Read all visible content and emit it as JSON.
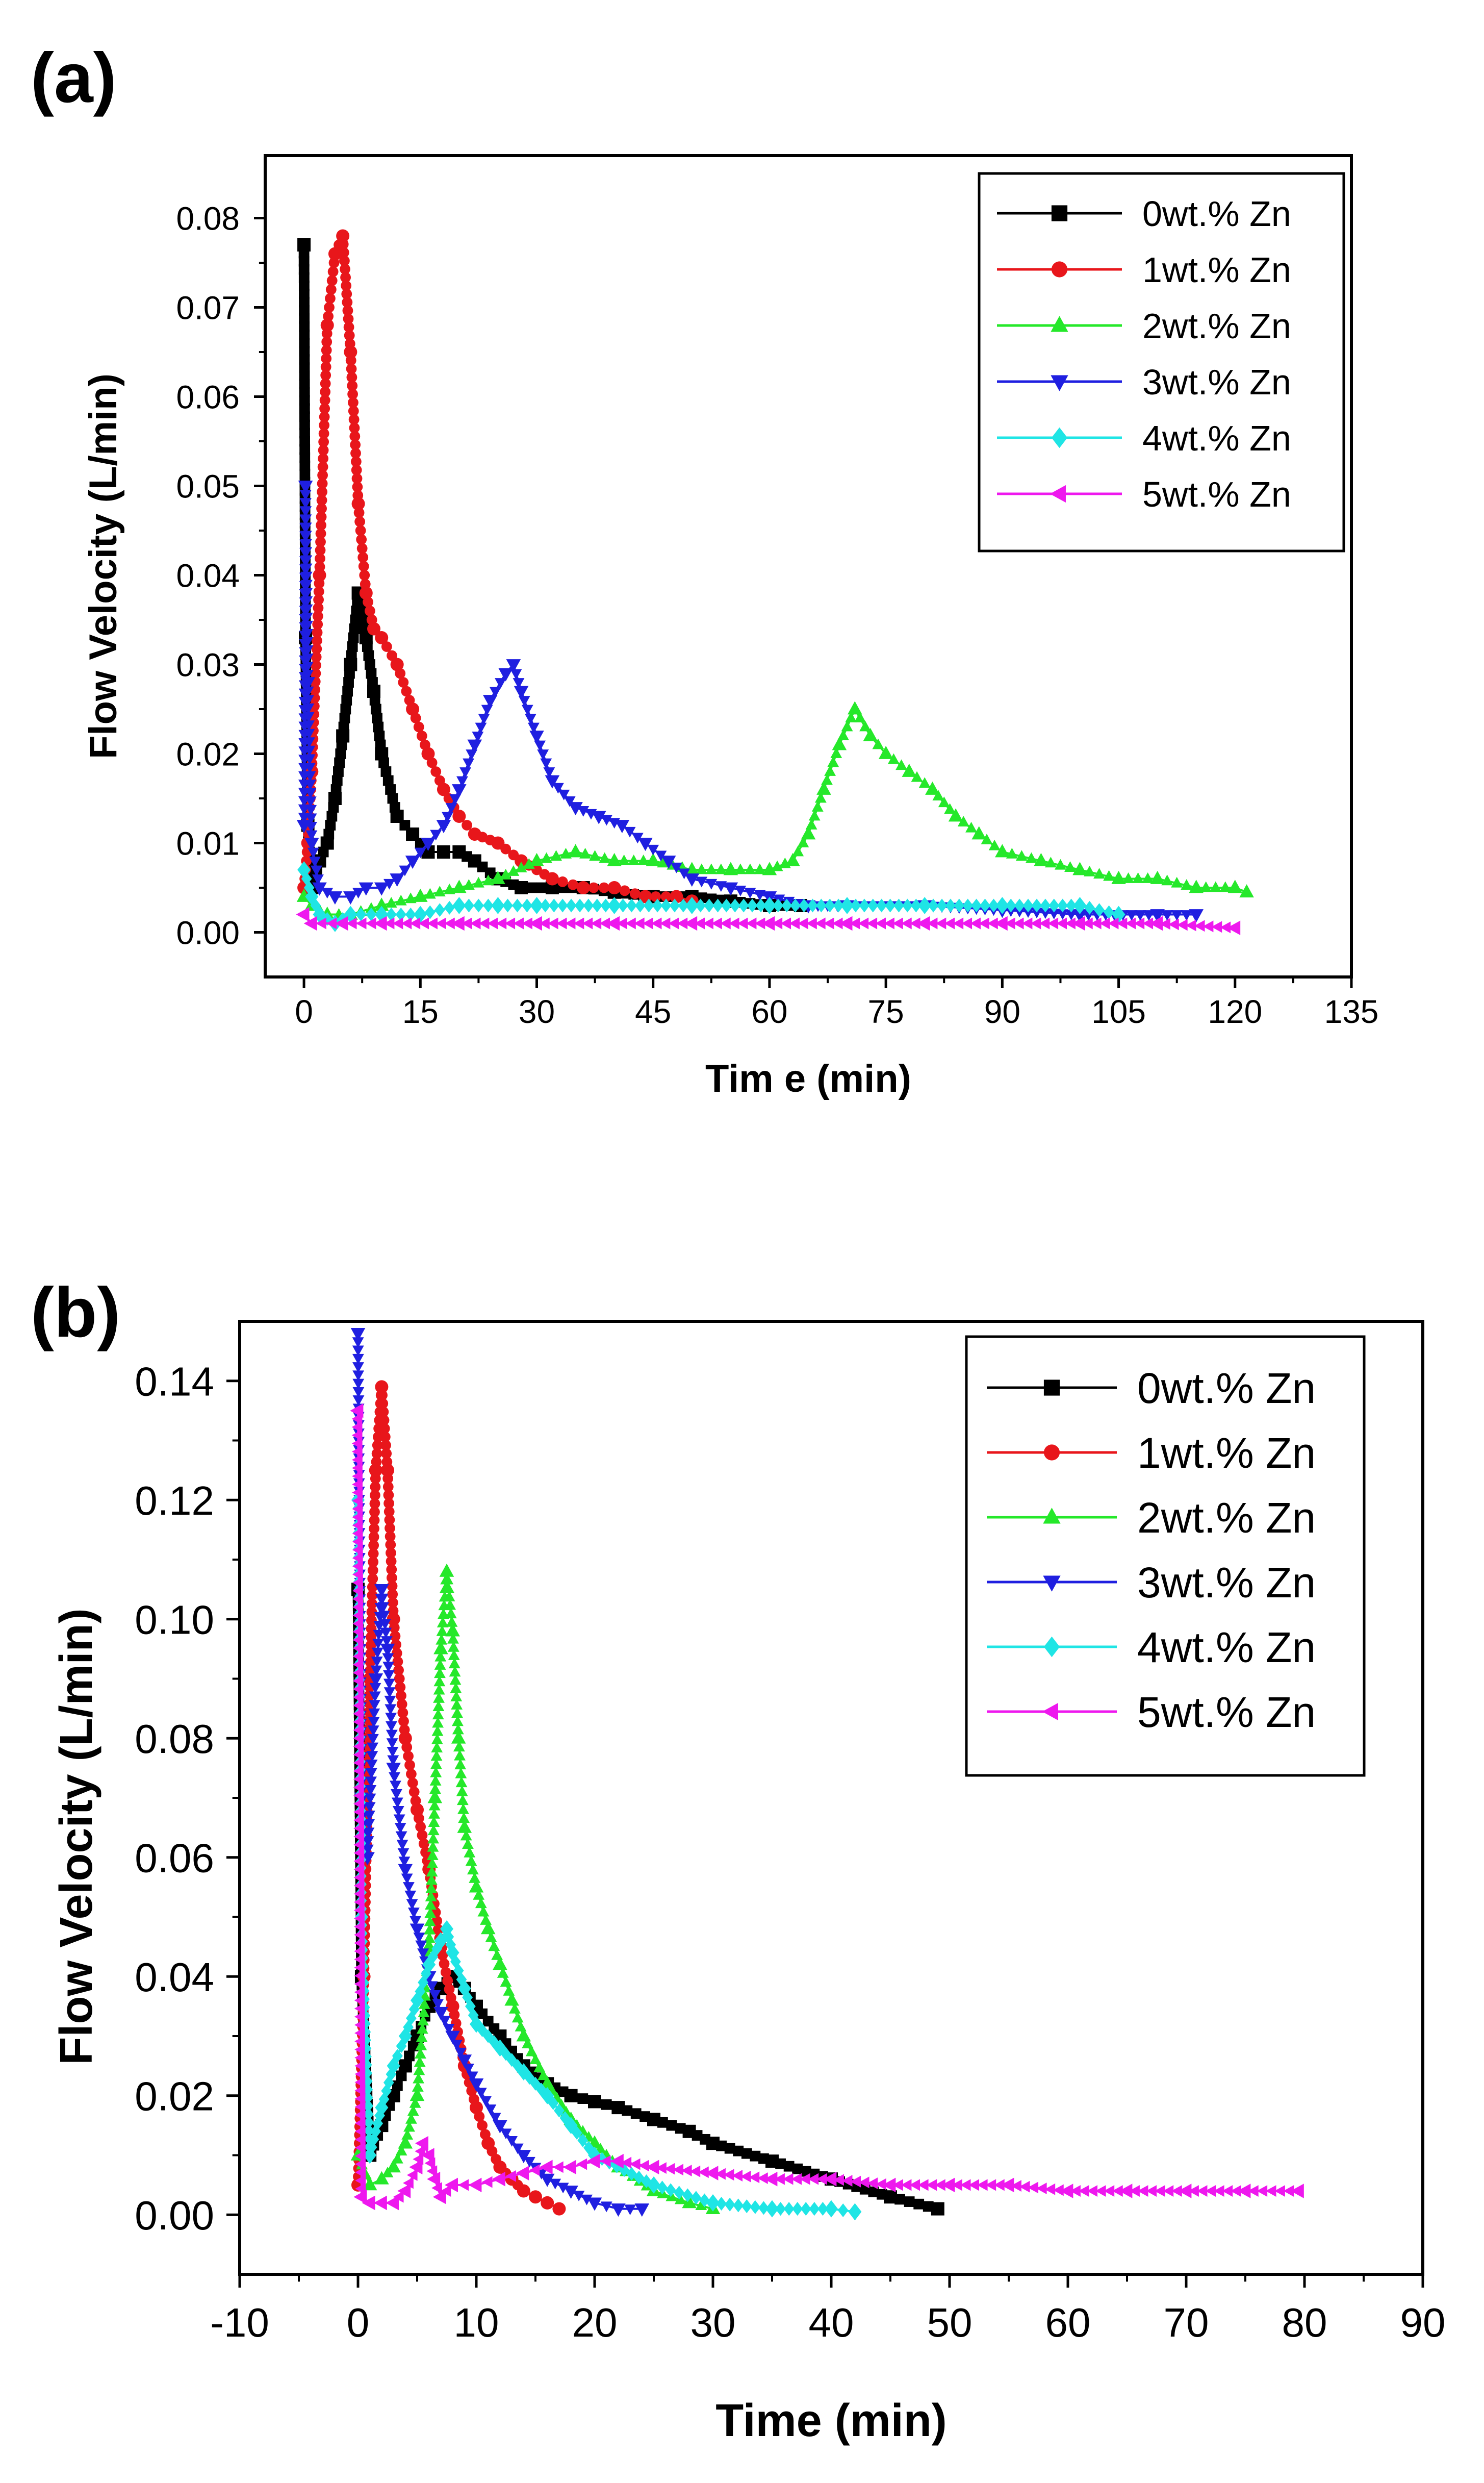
{
  "chart_data": [
    {
      "panel": "(a)",
      "type": "line",
      "xlabel": "Tim e (min)",
      "ylabel": "Flow Velocity (L/min)",
      "xlim": [
        -5,
        135
      ],
      "ylim": [
        -0.005,
        0.087
      ],
      "xticks": [
        0,
        15,
        30,
        45,
        60,
        75,
        90,
        105,
        120,
        135
      ],
      "xtick_labels": [
        "0",
        "15",
        "30",
        "45",
        "60",
        "75",
        "90",
        "105",
        "120",
        "135"
      ],
      "yticks": [
        0.0,
        0.01,
        0.02,
        0.03,
        0.04,
        0.05,
        0.06,
        0.07,
        0.08
      ],
      "ytick_labels": [
        "0.00",
        "0.01",
        "0.02",
        "0.03",
        "0.04",
        "0.05",
        "0.06",
        "0.07",
        "0.08"
      ],
      "legend_position": "top-right",
      "series": [
        {
          "name": "0wt.% Zn",
          "color": "#000000",
          "marker": "square",
          "x": [
            0,
            0.2,
            0.5,
            1,
            2,
            3,
            4,
            5,
            6,
            7,
            8,
            9,
            10,
            12,
            14,
            16,
            18,
            20,
            22,
            25,
            28,
            32,
            36,
            40,
            45,
            50,
            55,
            60,
            64
          ],
          "y": [
            0.077,
            0.033,
            0.012,
            0.005,
            0.008,
            0.01,
            0.015,
            0.022,
            0.03,
            0.038,
            0.033,
            0.027,
            0.02,
            0.013,
            0.011,
            0.009,
            0.009,
            0.009,
            0.008,
            0.006,
            0.005,
            0.005,
            0.005,
            0.0045,
            0.004,
            0.004,
            0.0035,
            0.003,
            0.003
          ]
        },
        {
          "name": "1wt.% Zn",
          "color": "#e8161b",
          "marker": "circle",
          "x": [
            0,
            0.5,
            1,
            2,
            3,
            4,
            5,
            6,
            7,
            8,
            9,
            10,
            12,
            14,
            16,
            18,
            20,
            22,
            25,
            28,
            32,
            36,
            40,
            44,
            48,
            50
          ],
          "y": [
            0.005,
            0.01,
            0.018,
            0.04,
            0.068,
            0.076,
            0.078,
            0.065,
            0.048,
            0.038,
            0.034,
            0.033,
            0.03,
            0.025,
            0.02,
            0.016,
            0.013,
            0.011,
            0.01,
            0.008,
            0.006,
            0.005,
            0.005,
            0.004,
            0.004,
            0.0035
          ]
        },
        {
          "name": "2wt.% Zn",
          "color": "#25e82a",
          "marker": "triangle-up",
          "x": [
            0,
            1,
            3,
            6,
            10,
            15,
            20,
            25,
            30,
            35,
            40,
            45,
            50,
            55,
            60,
            63,
            65,
            67,
            69,
            71,
            73,
            75,
            78,
            81,
            84,
            87,
            90,
            95,
            100,
            105,
            110,
            115,
            120,
            121.5
          ],
          "y": [
            0.004,
            0.003,
            0.002,
            0.002,
            0.003,
            0.004,
            0.005,
            0.006,
            0.008,
            0.009,
            0.008,
            0.008,
            0.007,
            0.007,
            0.007,
            0.008,
            0.011,
            0.016,
            0.021,
            0.025,
            0.022,
            0.02,
            0.018,
            0.016,
            0.013,
            0.011,
            0.009,
            0.008,
            0.007,
            0.006,
            0.006,
            0.005,
            0.005,
            0.0045
          ]
        },
        {
          "name": "3wt.% Zn",
          "color": "#1f1fe0",
          "marker": "triangle-down",
          "x": [
            0,
            0.2,
            0.5,
            1,
            2,
            4,
            6,
            8,
            10,
            12,
            14,
            16,
            18,
            20,
            22,
            24,
            26,
            27,
            28,
            30,
            32,
            35,
            38,
            41,
            44,
            47,
            50,
            55,
            60,
            65,
            70,
            80,
            90,
            100,
            110,
            115
          ],
          "y": [
            0.012,
            0.05,
            0.028,
            0.01,
            0.005,
            0.004,
            0.004,
            0.005,
            0.005,
            0.006,
            0.008,
            0.01,
            0.012,
            0.016,
            0.021,
            0.026,
            0.029,
            0.03,
            0.027,
            0.022,
            0.017,
            0.014,
            0.013,
            0.012,
            0.01,
            0.008,
            0.006,
            0.005,
            0.004,
            0.003,
            0.003,
            0.003,
            0.0025,
            0.002,
            0.002,
            0.002
          ]
        },
        {
          "name": "4wt.% Zn",
          "color": "#1fe5e5",
          "marker": "diamond",
          "x": [
            0,
            1,
            2,
            4,
            6,
            10,
            15,
            20,
            25,
            30,
            40,
            50,
            60,
            70,
            80,
            90,
            100,
            105
          ],
          "y": [
            0.007,
            0.004,
            0.002,
            0.001,
            0.002,
            0.002,
            0.002,
            0.003,
            0.003,
            0.003,
            0.003,
            0.003,
            0.003,
            0.003,
            0.003,
            0.003,
            0.003,
            0.002
          ]
        },
        {
          "name": "5wt.% Zn",
          "color": "#ee18ee",
          "marker": "triangle-left",
          "x": [
            0,
            1,
            5,
            10,
            20,
            30,
            40,
            50,
            60,
            70,
            80,
            90,
            100,
            110,
            120
          ],
          "y": [
            0.002,
            0.001,
            0.001,
            0.001,
            0.001,
            0.001,
            0.001,
            0.001,
            0.001,
            0.001,
            0.001,
            0.001,
            0.001,
            0.001,
            0.0005
          ]
        }
      ]
    },
    {
      "panel": "(b)",
      "type": "line",
      "xlabel": "Time (min)",
      "ylabel": "Flow Velocity (L/min)",
      "xlim": [
        -10,
        90
      ],
      "ylim": [
        -0.01,
        0.15
      ],
      "xticks": [
        -10,
        0,
        10,
        20,
        30,
        40,
        50,
        60,
        70,
        80,
        90
      ],
      "xtick_labels": [
        "-10",
        "0",
        "10",
        "20",
        "30",
        "40",
        "50",
        "60",
        "70",
        "80",
        "90"
      ],
      "yticks": [
        0.0,
        0.02,
        0.04,
        0.06,
        0.08,
        0.1,
        0.12,
        0.14
      ],
      "ytick_labels": [
        "0.00",
        "0.02",
        "0.04",
        "0.06",
        "0.08",
        "0.10",
        "0.12",
        "0.14"
      ],
      "legend_position": "top-right",
      "series": [
        {
          "name": "0wt.% Zn",
          "color": "#000000",
          "marker": "square",
          "x": [
            0,
            0.3,
            1,
            2,
            3,
            4,
            5,
            6,
            7,
            8,
            9,
            10,
            12,
            14,
            16,
            18,
            20,
            22,
            25,
            28,
            30,
            35,
            40,
            45,
            49
          ],
          "y": [
            0.105,
            0.04,
            0.01,
            0.015,
            0.02,
            0.025,
            0.03,
            0.035,
            0.038,
            0.04,
            0.038,
            0.035,
            0.03,
            0.025,
            0.022,
            0.02,
            0.019,
            0.018,
            0.016,
            0.014,
            0.012,
            0.009,
            0.006,
            0.003,
            0.001
          ]
        },
        {
          "name": "1wt.% Zn",
          "color": "#e8161b",
          "marker": "circle",
          "x": [
            0,
            0.5,
            1,
            1.5,
            2,
            2.5,
            3,
            4,
            5,
            6,
            7,
            8,
            9,
            10,
            11,
            12,
            13,
            14,
            15,
            16,
            17
          ],
          "y": [
            0.005,
            0.04,
            0.09,
            0.125,
            0.139,
            0.125,
            0.1,
            0.08,
            0.068,
            0.058,
            0.045,
            0.035,
            0.025,
            0.018,
            0.012,
            0.008,
            0.006,
            0.004,
            0.003,
            0.002,
            0.001
          ]
        },
        {
          "name": "2wt.% Zn",
          "color": "#25e82a",
          "marker": "triangle-up",
          "x": [
            0,
            1,
            2,
            3,
            4,
            5,
            6,
            6.5,
            7,
            7.5,
            8,
            8.5,
            9,
            10,
            11,
            12,
            13,
            14,
            16,
            18,
            20,
            22,
            25,
            28,
            30
          ],
          "y": [
            0.01,
            0.005,
            0.006,
            0.008,
            0.012,
            0.02,
            0.045,
            0.07,
            0.095,
            0.108,
            0.098,
            0.08,
            0.065,
            0.055,
            0.048,
            0.042,
            0.036,
            0.03,
            0.022,
            0.016,
            0.012,
            0.008,
            0.004,
            0.002,
            0.001
          ]
        },
        {
          "name": "3wt.% Zn",
          "color": "#1f1fe0",
          "marker": "triangle-down",
          "x": [
            0,
            0.3,
            0.8,
            1.5,
            2,
            2.5,
            3,
            4,
            5,
            6,
            7,
            8,
            9,
            10,
            12,
            14,
            16,
            18,
            20,
            22,
            24
          ],
          "y": [
            0.148,
            0.07,
            0.06,
            0.09,
            0.105,
            0.095,
            0.075,
            0.058,
            0.048,
            0.04,
            0.034,
            0.03,
            0.026,
            0.022,
            0.015,
            0.01,
            0.006,
            0.004,
            0.002,
            0.001,
            0.001
          ]
        },
        {
          "name": "4wt.% Zn",
          "color": "#1fe5e5",
          "marker": "diamond",
          "x": [
            0,
            0.3,
            1,
            2,
            3,
            4,
            5,
            6,
            7,
            7.5,
            8,
            9,
            10,
            12,
            14,
            16,
            18,
            20,
            25,
            30,
            35,
            40,
            42
          ],
          "y": [
            0.12,
            0.05,
            0.01,
            0.018,
            0.025,
            0.03,
            0.036,
            0.042,
            0.046,
            0.048,
            0.044,
            0.038,
            0.032,
            0.028,
            0.024,
            0.02,
            0.015,
            0.01,
            0.005,
            0.002,
            0.001,
            0.001,
            0.0005
          ]
        },
        {
          "name": "5wt.% Zn",
          "color": "#ee18ee",
          "marker": "triangle-left",
          "x": [
            0,
            0.3,
            1,
            2,
            3,
            4,
            5,
            5.5,
            6,
            6.5,
            7,
            8,
            10,
            12,
            14,
            16,
            18,
            20,
            22,
            25,
            30,
            35,
            40,
            45,
            50,
            55,
            60,
            65,
            70,
            75,
            79.5
          ],
          "y": [
            0.135,
            0.003,
            0.002,
            0.002,
            0.002,
            0.004,
            0.008,
            0.012,
            0.01,
            0.006,
            0.003,
            0.005,
            0.005,
            0.006,
            0.007,
            0.008,
            0.008,
            0.009,
            0.009,
            0.008,
            0.007,
            0.006,
            0.006,
            0.005,
            0.005,
            0.005,
            0.004,
            0.004,
            0.004,
            0.004,
            0.004
          ]
        }
      ]
    }
  ]
}
